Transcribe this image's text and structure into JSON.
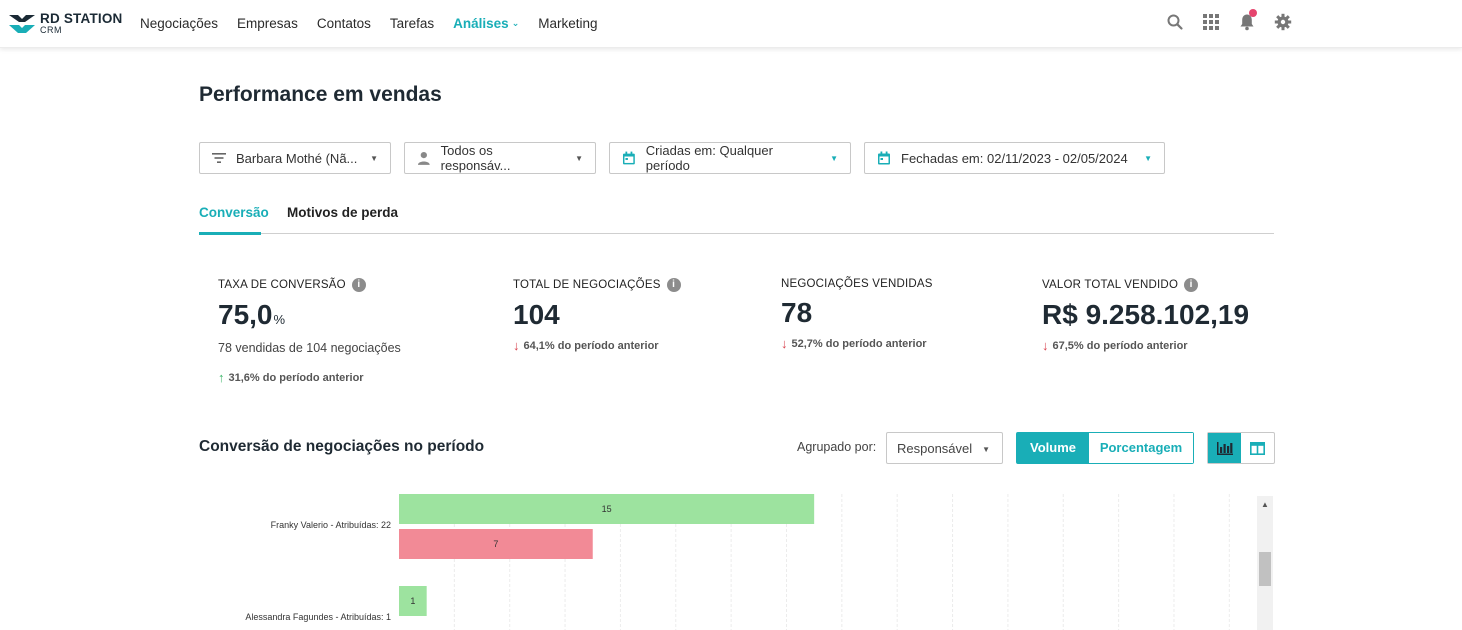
{
  "header": {
    "brand": "RD STATION",
    "brand_sub": "CRM",
    "nav": [
      "Negociações",
      "Empresas",
      "Contatos",
      "Tarefas",
      "Análises",
      "Marketing"
    ],
    "active_nav": "Análises",
    "icons": [
      "search-icon",
      "apps-grid-icon",
      "bell-icon",
      "gear-icon"
    ],
    "notification_color": "#e5446d"
  },
  "page": {
    "title": "Performance em vendas",
    "filters": {
      "funnel": "Barbara Mothé (Nã...",
      "owners": "Todos os responsáv...",
      "created": "Criadas em: Qualquer período",
      "closed": "Fechadas em: 02/11/2023 - 02/05/2024"
    },
    "tabs": [
      "Conversão",
      "Motivos de perda"
    ],
    "active_tab": "Conversão"
  },
  "kpis": [
    {
      "label": "TAXA DE CONVERSÃO",
      "value": "75,0",
      "unit": "%",
      "sub": "78 vendidas de 104 negociações",
      "delta": "31,6% do período anterior",
      "trend": "up"
    },
    {
      "label": "TOTAL DE NEGOCIAÇÕES",
      "value": "104",
      "delta": "64,1% do período anterior",
      "trend": "down"
    },
    {
      "label": "NEGOCIAÇÕES VENDIDAS",
      "value": "78",
      "delta": "52,7% do período anterior",
      "trend": "down"
    },
    {
      "label": "VALOR TOTAL VENDIDO",
      "value": "R$ 9.258.102,19",
      "delta": "67,5% do período anterior",
      "trend": "down"
    }
  ],
  "chart_section": {
    "title": "Conversão de negociações no período",
    "group_label": "Agrupado por:",
    "group_value": "Responsável",
    "mode_on": "Volume",
    "mode_off": "Porcentagem"
  },
  "chart_data": {
    "type": "bar",
    "orientation": "horizontal",
    "categories": [
      "Franky Valerio - Atribuídas: 22",
      "Alessandra Fagundes - Atribuídas: 1"
    ],
    "series": [
      {
        "values": [
          15,
          1
        ],
        "color": "#9de39f"
      },
      {
        "values": [
          7,
          0
        ],
        "color": "#f28a96"
      }
    ],
    "xlim": [
      0,
      31
    ],
    "grid": true
  }
}
